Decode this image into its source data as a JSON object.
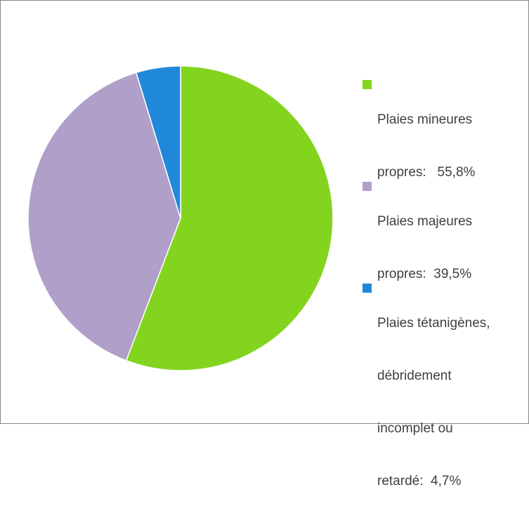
{
  "chart_data": {
    "type": "pie",
    "title": "",
    "legend_position": "right",
    "slices": [
      {
        "label": "Plaies mineures propres:   55,8%",
        "value": 55.8,
        "color": "#83d41f"
      },
      {
        "label": "Plaies majeures propres:  39,5%",
        "value": 39.5,
        "color": "#b09fc8"
      },
      {
        "label": "Plaies tétanigènes, débridement incomplet ou retardé:  4,7%",
        "value": 4.7,
        "color": "#1f88d9"
      }
    ]
  },
  "legend_lines": [
    [
      "Plaies mineures",
      "propres:   55,8%"
    ],
    [
      "Plaies majeures",
      "propres:  39,5%"
    ],
    [
      "Plaies tétanigènes,",
      "débridement",
      "incomplet ou",
      "retardé:  4,7%"
    ]
  ]
}
